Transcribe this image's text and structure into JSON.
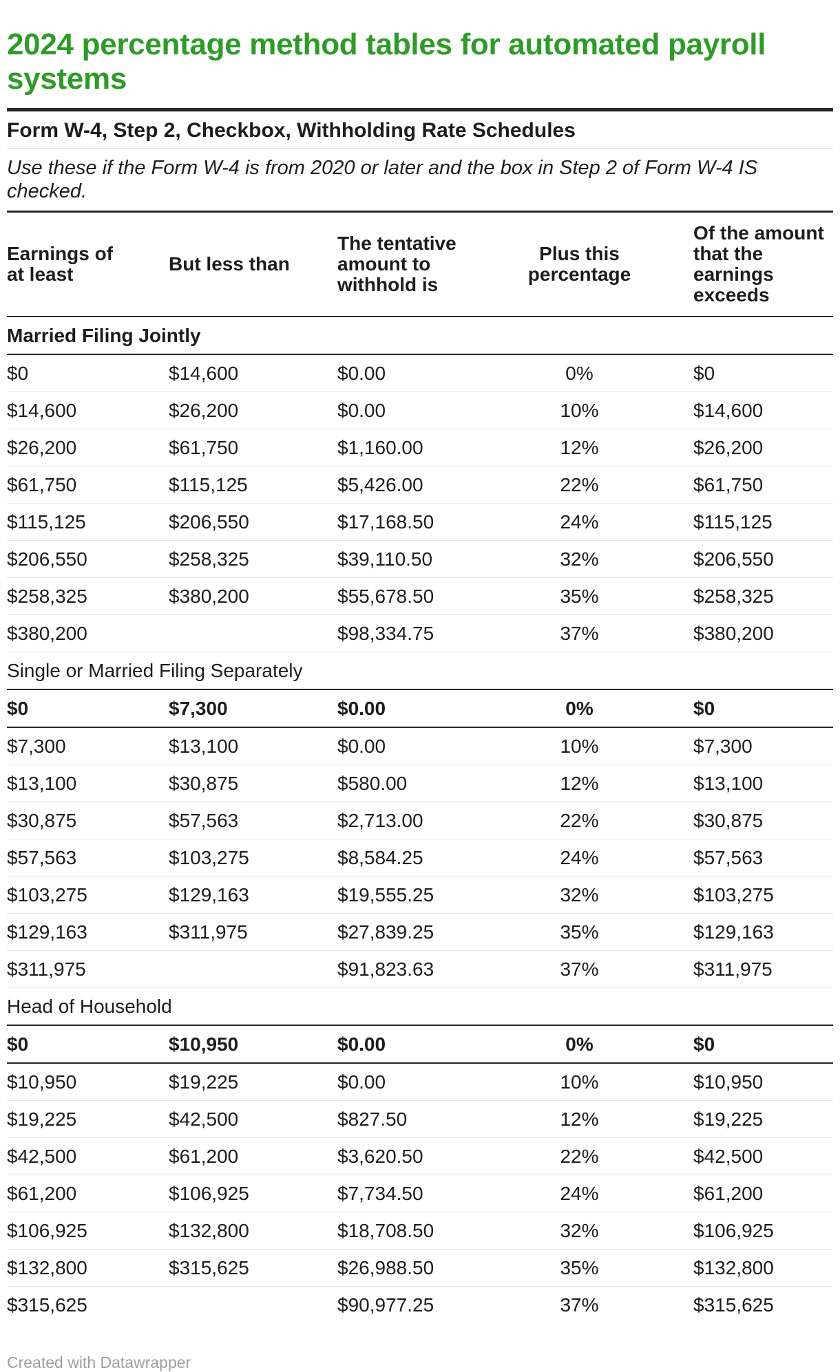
{
  "colors": {
    "title_green": "#2c9c26",
    "rule_dark": "#262626",
    "row_separator_light": "#e6e6e6",
    "body_text": "#1d1d1d",
    "footer_gray": "#9e9e9e"
  },
  "footer": {
    "credit": "Created with Datawrapper"
  },
  "chart_data": {
    "type": "table",
    "title": "2024 percentage method tables for automated payroll systems",
    "subtitle": "Form W-4, Step 2, Checkbox, Withholding Rate Schedules",
    "note": "Use these if the Form W-4 is from 2020 or later and the box in Step 2 of Form W-4 IS checked.",
    "columns": [
      {
        "label": "Earnings of\nat least",
        "align": "left"
      },
      {
        "label": "But less than",
        "align": "left"
      },
      {
        "label": "The tentative\namount to\nwithhold is",
        "align": "left"
      },
      {
        "label": "Plus this\npercentage",
        "align": "center"
      },
      {
        "label": "Of the amount\nthat the\nearnings\nexceeds",
        "align": "left"
      }
    ],
    "sections": [
      {
        "label": "Married Filing Jointly",
        "label_bold": true,
        "rows": [
          {
            "bold": false,
            "cells": [
              "$0",
              "$14,600",
              "$0.00",
              "0%",
              "$0"
            ]
          },
          {
            "bold": false,
            "cells": [
              "$14,600",
              "$26,200",
              "$0.00",
              "10%",
              "$14,600"
            ]
          },
          {
            "bold": false,
            "cells": [
              "$26,200",
              "$61,750",
              "$1,160.00",
              "12%",
              "$26,200"
            ]
          },
          {
            "bold": false,
            "cells": [
              "$61,750",
              "$115,125",
              "$5,426.00",
              "22%",
              "$61,750"
            ]
          },
          {
            "bold": false,
            "cells": [
              "$115,125",
              "$206,550",
              "$17,168.50",
              "24%",
              "$115,125"
            ]
          },
          {
            "bold": false,
            "cells": [
              "$206,550",
              "$258,325",
              "$39,110.50",
              "32%",
              "$206,550"
            ]
          },
          {
            "bold": false,
            "cells": [
              "$258,325",
              "$380,200",
              "$55,678.50",
              "35%",
              "$258,325"
            ]
          },
          {
            "bold": false,
            "cells": [
              "$380,200",
              "",
              "$98,334.75",
              "37%",
              "$380,200"
            ]
          }
        ]
      },
      {
        "label": "Single or Married Filing Separately",
        "label_bold": false,
        "rows": [
          {
            "bold": true,
            "cells": [
              "$0",
              "$7,300",
              "$0.00",
              "0%",
              "$0"
            ]
          },
          {
            "bold": false,
            "cells": [
              "$7,300",
              "$13,100",
              "$0.00",
              "10%",
              "$7,300"
            ]
          },
          {
            "bold": false,
            "cells": [
              "$13,100",
              "$30,875",
              "$580.00",
              "12%",
              "$13,100"
            ]
          },
          {
            "bold": false,
            "cells": [
              "$30,875",
              "$57,563",
              "$2,713.00",
              "22%",
              "$30,875"
            ]
          },
          {
            "bold": false,
            "cells": [
              "$57,563",
              "$103,275",
              "$8,584.25",
              "24%",
              "$57,563"
            ]
          },
          {
            "bold": false,
            "cells": [
              "$103,275",
              "$129,163",
              "$19,555.25",
              "32%",
              "$103,275"
            ]
          },
          {
            "bold": false,
            "cells": [
              "$129,163",
              "$311,975",
              "$27,839.25",
              "35%",
              "$129,163"
            ]
          },
          {
            "bold": false,
            "cells": [
              "$311,975",
              "",
              "$91,823.63",
              "37%",
              "$311,975"
            ]
          }
        ]
      },
      {
        "label": "Head of Household",
        "label_bold": false,
        "rows": [
          {
            "bold": true,
            "cells": [
              "$0",
              "$10,950",
              "$0.00",
              "0%",
              "$0"
            ]
          },
          {
            "bold": false,
            "cells": [
              "$10,950",
              "$19,225",
              "$0.00",
              "10%",
              "$10,950"
            ]
          },
          {
            "bold": false,
            "cells": [
              "$19,225",
              "$42,500",
              "$827.50",
              "12%",
              "$19,225"
            ]
          },
          {
            "bold": false,
            "cells": [
              "$42,500",
              "$61,200",
              "$3,620.50",
              "22%",
              "$42,500"
            ]
          },
          {
            "bold": false,
            "cells": [
              "$61,200",
              "$106,925",
              "$7,734.50",
              "24%",
              "$61,200"
            ]
          },
          {
            "bold": false,
            "cells": [
              "$106,925",
              "$132,800",
              "$18,708.50",
              "32%",
              "$106,925"
            ]
          },
          {
            "bold": false,
            "cells": [
              "$132,800",
              "$315,625",
              "$26,988.50",
              "35%",
              "$132,800"
            ]
          },
          {
            "bold": false,
            "cells": [
              "$315,625",
              "",
              "$90,977.25",
              "37%",
              "$315,625"
            ]
          }
        ]
      }
    ]
  }
}
